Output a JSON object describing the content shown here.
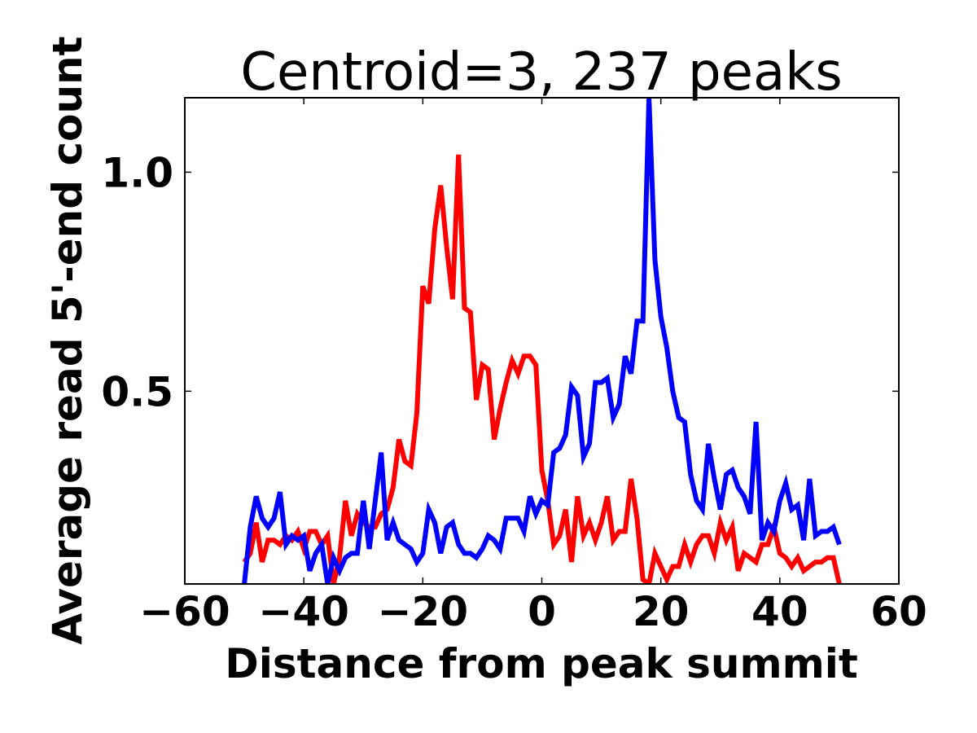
{
  "chart_data": {
    "type": "line",
    "title": "Centroid=3, 237 peaks",
    "xlabel": "Distance from peak summit",
    "ylabel": "Average read 5'-end count",
    "xlim": [
      -60,
      60
    ],
    "ylim": [
      0.06,
      1.17
    ],
    "x_ticks": [
      -60,
      -40,
      -20,
      0,
      20,
      40,
      60
    ],
    "x_tick_labels": [
      "−60",
      "−40",
      "−20",
      "0",
      "20",
      "40",
      "60"
    ],
    "y_ticks": [
      0.5,
      1.0
    ],
    "y_tick_labels": [
      "0.5",
      "1.0"
    ],
    "grid": false,
    "legend": "none",
    "x": [
      -50,
      -49,
      -48,
      -47,
      -46,
      -45,
      -44,
      -43,
      -42,
      -41,
      -40,
      -39,
      -38,
      -37,
      -36,
      -35,
      -34,
      -33,
      -32,
      -31,
      -30,
      -29,
      -28,
      -27,
      -26,
      -25,
      -24,
      -23,
      -22,
      -21,
      -20,
      -19,
      -18,
      -17,
      -16,
      -15,
      -14,
      -13,
      -12,
      -11,
      -10,
      -9,
      -8,
      -7,
      -6,
      -5,
      -4,
      -3,
      -2,
      -1,
      0,
      1,
      2,
      3,
      4,
      5,
      6,
      7,
      8,
      9,
      10,
      11,
      12,
      13,
      14,
      15,
      16,
      17,
      18,
      19,
      20,
      21,
      22,
      23,
      24,
      25,
      26,
      27,
      28,
      29,
      30,
      31,
      32,
      33,
      34,
      35,
      36,
      37,
      38,
      39,
      40,
      41,
      42,
      43,
      44,
      45,
      46,
      47,
      48,
      49,
      50
    ],
    "series": [
      {
        "color": "#ff0000",
        "values": [
          0.11,
          0.13,
          0.2,
          0.11,
          0.16,
          0.16,
          0.15,
          0.17,
          0.16,
          0.18,
          0.14,
          0.18,
          0.18,
          0.15,
          0.17,
          0.06,
          0.12,
          0.25,
          0.17,
          0.22,
          0.2,
          0.19,
          0.19,
          0.22,
          0.23,
          0.28,
          0.39,
          0.34,
          0.33,
          0.45,
          0.74,
          0.7,
          0.87,
          0.97,
          0.83,
          0.71,
          1.04,
          0.69,
          0.68,
          0.48,
          0.56,
          0.55,
          0.39,
          0.46,
          0.52,
          0.57,
          0.54,
          0.58,
          0.58,
          0.56,
          0.32,
          0.25,
          0.15,
          0.17,
          0.23,
          0.11,
          0.26,
          0.17,
          0.2,
          0.16,
          0.2,
          0.26,
          0.16,
          0.18,
          0.18,
          0.3,
          0.21,
          0.07,
          0.06,
          0.13,
          0.1,
          0.07,
          0.1,
          0.1,
          0.15,
          0.11,
          0.15,
          0.17,
          0.17,
          0.13,
          0.2,
          0.16,
          0.19,
          0.09,
          0.13,
          0.12,
          0.11,
          0.15,
          0.15,
          0.19,
          0.13,
          0.12,
          0.1,
          0.12,
          0.09,
          0.1,
          0.11,
          0.11,
          0.12,
          0.12,
          0.06
        ]
      },
      {
        "color": "#0000ff",
        "values": [
          0.06,
          0.19,
          0.26,
          0.21,
          0.19,
          0.21,
          0.27,
          0.15,
          0.17,
          0.16,
          0.17,
          0.09,
          0.13,
          0.15,
          0.06,
          0.12,
          0.09,
          0.12,
          0.13,
          0.13,
          0.25,
          0.14,
          0.25,
          0.36,
          0.16,
          0.2,
          0.16,
          0.15,
          0.14,
          0.11,
          0.13,
          0.23,
          0.2,
          0.13,
          0.19,
          0.2,
          0.15,
          0.13,
          0.13,
          0.12,
          0.14,
          0.17,
          0.16,
          0.14,
          0.21,
          0.21,
          0.21,
          0.18,
          0.26,
          0.22,
          0.25,
          0.24,
          0.36,
          0.37,
          0.4,
          0.51,
          0.49,
          0.35,
          0.38,
          0.52,
          0.52,
          0.53,
          0.44,
          0.47,
          0.58,
          0.54,
          0.66,
          0.66,
          1.17,
          0.8,
          0.67,
          0.6,
          0.5,
          0.44,
          0.43,
          0.31,
          0.25,
          0.23,
          0.38,
          0.3,
          0.23,
          0.31,
          0.32,
          0.28,
          0.26,
          0.22,
          0.43,
          0.16,
          0.2,
          0.18,
          0.25,
          0.29,
          0.23,
          0.24,
          0.16,
          0.3,
          0.17,
          0.18,
          0.18,
          0.19,
          0.15
        ]
      }
    ]
  }
}
